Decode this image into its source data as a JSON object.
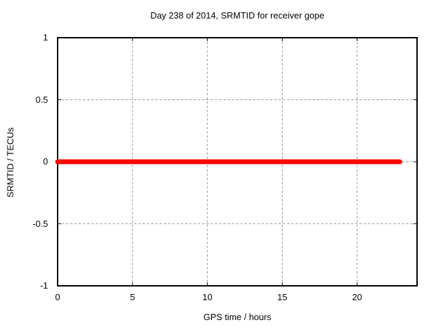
{
  "page": {
    "background": "#ffffff",
    "text_color": "#000000"
  },
  "colors": {
    "frame": "#000000",
    "grid": "#8c8c8c",
    "tick": "#000000",
    "series_red": "#ff0000"
  },
  "chart_data": {
    "type": "line",
    "title": "Day 238 of 2014, SRMTID for receiver gope",
    "xlabel": "GPS time / hours",
    "ylabel": "SRMTID / TECUs",
    "xlim": [
      0,
      24
    ],
    "ylim": [
      -1,
      1
    ],
    "xticks": [
      0,
      5,
      10,
      15,
      20
    ],
    "xtick_labels": [
      "0",
      "5",
      "10",
      "15",
      "20"
    ],
    "yticks": [
      -1,
      -0.5,
      0,
      0.5,
      1
    ],
    "ytick_labels": [
      "-1",
      "-0.5",
      "0",
      "0.5",
      "1"
    ],
    "grid": true,
    "grid_style": "dashed",
    "legend": "none",
    "series": [
      {
        "name": "SRMTID",
        "color": "#ff0000",
        "linewidth": 7,
        "x": [
          0,
          22.85
        ],
        "y": [
          0,
          0
        ]
      }
    ]
  }
}
